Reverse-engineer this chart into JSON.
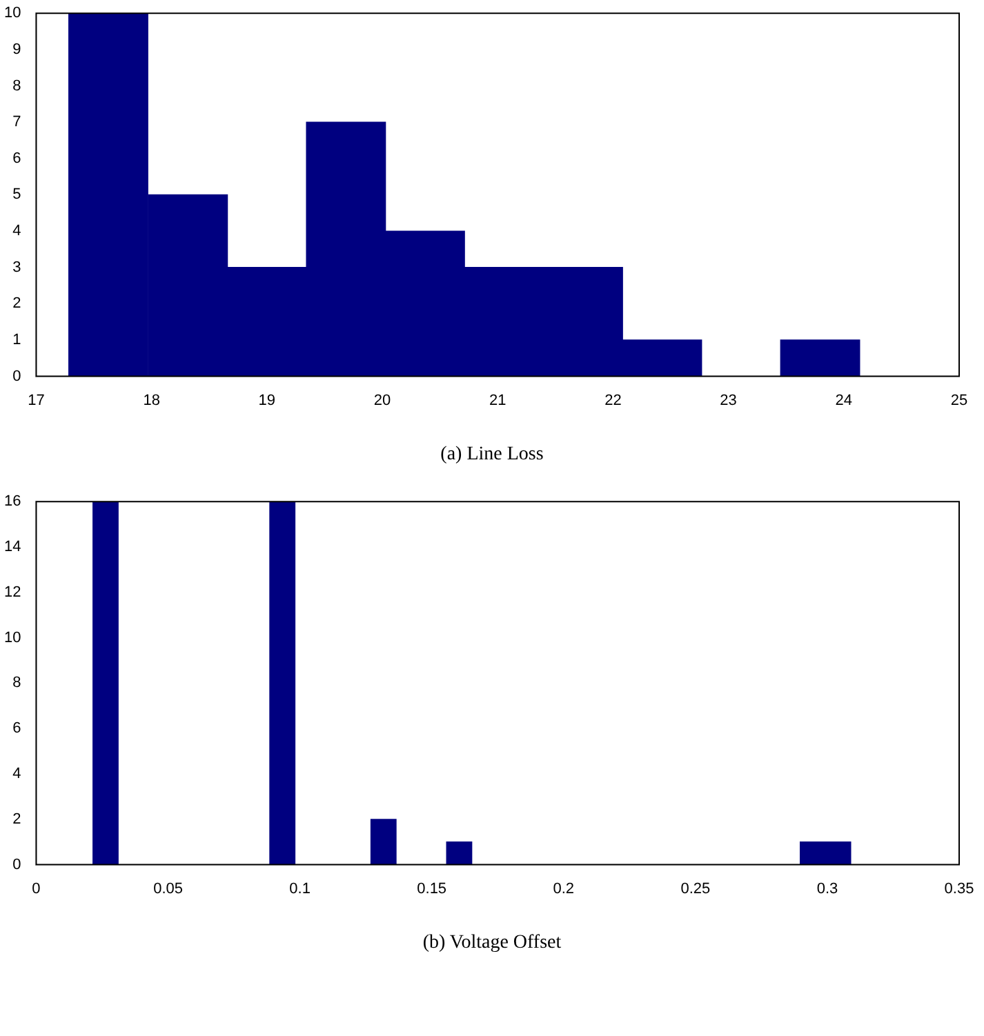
{
  "chart_data": [
    {
      "type": "histogram",
      "title": "(a) Line Loss",
      "color": "#000080",
      "bins": [
        17.28,
        17.97,
        18.66,
        19.34,
        20.03,
        20.71,
        21.4,
        22.08,
        22.77,
        23.45,
        24.14
      ],
      "values": [
        10,
        5,
        3,
        7,
        4,
        3,
        3,
        1,
        0,
        1
      ],
      "xlim": [
        17,
        25
      ],
      "xticks": [
        17,
        18,
        19,
        20,
        21,
        22,
        23,
        24,
        25
      ],
      "ylim": [
        0,
        10
      ],
      "yticks": [
        0,
        1,
        2,
        3,
        4,
        5,
        6,
        7,
        8,
        9,
        10
      ]
    },
    {
      "type": "histogram",
      "title": "(b) Voltage Offset",
      "color": "#000080",
      "bins": [
        0.0215,
        0.0311,
        0.0407,
        0.0502,
        0.0598,
        0.0694,
        0.079,
        0.0886,
        0.0981,
        0.1077,
        0.1173,
        0.1269,
        0.1365,
        0.146,
        0.1556,
        0.1652,
        0.1748,
        0.1844,
        0.1939,
        0.2035,
        0.2131,
        0.2227,
        0.2323,
        0.2418,
        0.2514,
        0.261,
        0.2706,
        0.2802,
        0.2897,
        0.2993,
        0.3089
      ],
      "values": [
        16,
        0,
        0,
        0,
        0,
        0,
        0,
        16,
        0,
        0,
        0,
        2,
        0,
        0,
        1,
        0,
        0,
        0,
        0,
        0,
        0,
        0,
        0,
        0,
        0,
        0,
        0,
        0,
        1,
        1
      ],
      "xlim": [
        0,
        0.35
      ],
      "xticks": [
        0,
        0.05,
        0.1,
        0.15,
        0.2,
        0.25,
        0.3,
        0.35
      ],
      "ylim": [
        0,
        16
      ],
      "yticks": [
        0,
        2,
        4,
        6,
        8,
        10,
        12,
        14,
        16
      ]
    }
  ]
}
